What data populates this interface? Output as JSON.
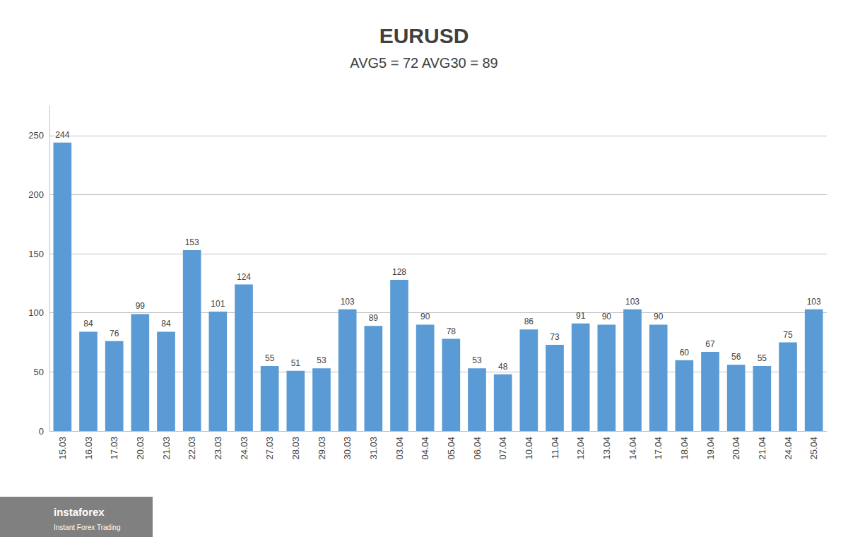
{
  "chart_data": {
    "type": "bar",
    "title": "EURUSD",
    "subtitle": "AVG5 = 72 AVG30 = 89",
    "categories": [
      "15.03",
      "16.03",
      "17.03",
      "20.03",
      "21.03",
      "22.03",
      "23.03",
      "24.03",
      "27.03",
      "28.03",
      "29.03",
      "30.03",
      "31.03",
      "03.04",
      "04.04",
      "05.04",
      "06.04",
      "07.04",
      "10.04",
      "11.04",
      "12.04",
      "13.04",
      "14.04",
      "17.04",
      "18.04",
      "19.04",
      "20.04",
      "21.04",
      "24.04",
      "25.04"
    ],
    "values": [
      244,
      84,
      76,
      99,
      84,
      153,
      101,
      124,
      55,
      51,
      53,
      103,
      89,
      128,
      90,
      78,
      53,
      48,
      86,
      73,
      91,
      90,
      103,
      90,
      60,
      67,
      56,
      55,
      75,
      103
    ],
    "color": "#5b9bd5",
    "ylim": [
      0,
      275
    ],
    "yticks": [
      0,
      50,
      100,
      150,
      200,
      250
    ],
    "grid": true,
    "data_labels": true,
    "annotations": [
      "instaforex",
      "Instant Forex Trading"
    ]
  }
}
